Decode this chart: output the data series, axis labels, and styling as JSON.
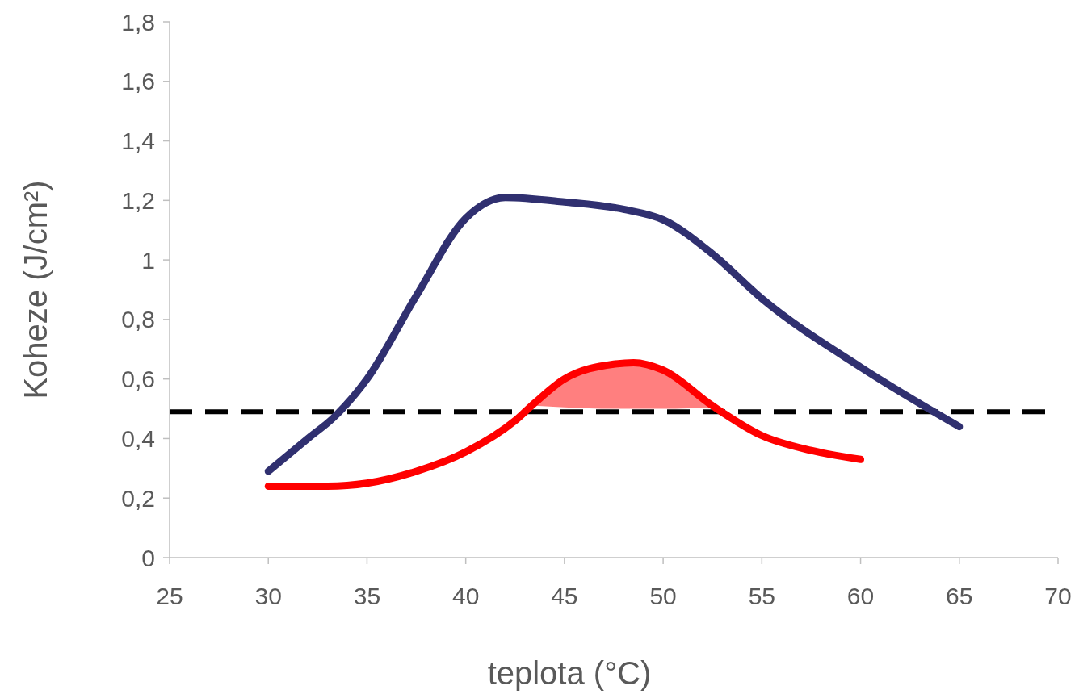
{
  "chart_data": {
    "type": "line",
    "xlabel": "teplota (°C)",
    "ylabel": "Koheze (J/cm²)",
    "xlim": [
      25,
      70
    ],
    "xticks": [
      25,
      30,
      35,
      40,
      45,
      50,
      55,
      60,
      65,
      70
    ],
    "ylim": [
      0,
      1.8
    ],
    "yticks": [
      0,
      {
        "value": 0.2,
        "label": "0,2"
      },
      {
        "value": 0.4,
        "label": "0,4"
      },
      {
        "value": 0.6,
        "label": "0,6"
      },
      {
        "value": 0.8,
        "label": "0,8"
      },
      1,
      {
        "value": 1.2,
        "label": "1,2"
      },
      {
        "value": 1.4,
        "label": "1,4"
      },
      {
        "value": 1.6,
        "label": "1,6"
      },
      {
        "value": 1.8,
        "label": "1,8"
      }
    ],
    "grid": false,
    "marker": "none",
    "series": [
      {
        "color": "#303070",
        "x": [
          30,
          32,
          33.3,
          35,
          37.5,
          40,
          42,
          45,
          48,
          50,
          52.5,
          55,
          60,
          65
        ],
        "values": [
          0.29,
          0.4,
          0.47,
          0.6,
          0.88,
          1.14,
          1.21,
          1.195,
          1.17,
          1.135,
          1.02,
          0.87,
          0.64,
          0.44
        ]
      },
      {
        "color": "#ff0000",
        "x": [
          30,
          33,
          35,
          37.5,
          40,
          42.5,
          43.5,
          45,
          47.5,
          48.5,
          50,
          52.5,
          55,
          57.5,
          60
        ],
        "values": [
          0.24,
          0.24,
          0.25,
          0.29,
          0.355,
          0.46,
          0.52,
          0.6,
          0.65,
          0.655,
          0.63,
          0.51,
          0.41,
          0.36,
          0.33
        ],
        "lower": [
          null,
          null,
          null,
          null,
          null,
          null,
          0.51,
          0.505,
          0.5,
          0.5,
          0.5,
          0.505,
          null,
          null,
          null
        ],
        "upper": [
          null,
          null,
          null,
          null,
          null,
          null,
          0.52,
          0.6,
          0.65,
          0.655,
          0.63,
          0.51,
          null,
          null,
          null
        ]
      }
    ],
    "ref_lines": [
      {
        "axis": "y",
        "value": 0.49,
        "color": "#000000",
        "line_style": "dashed"
      }
    ]
  }
}
